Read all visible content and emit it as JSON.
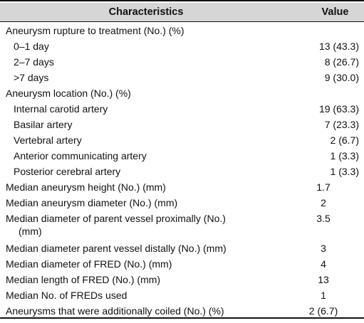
{
  "header": {
    "col1": "Characteristics",
    "col2": "Value"
  },
  "rows": [
    {
      "label": "Aneurysm rupture to treatment (No.) (%)",
      "value": ""
    },
    {
      "label": "0–1 day",
      "value": "13 (43.3)"
    },
    {
      "label": "2–7 days",
      "value": "8 (26.7)"
    },
    {
      "label": ">7 days",
      "value": "9 (30.0)"
    },
    {
      "label": "Aneurysm location (No.) (%)",
      "value": ""
    },
    {
      "label": "Internal carotid artery",
      "value": "19 (63.3)"
    },
    {
      "label": "Basilar artery",
      "value": "7 (23.3)"
    },
    {
      "label": "Vertebral artery",
      "value": "2 (6.7)"
    },
    {
      "label": "Anterior communicating artery",
      "value": "1 (3.3)"
    },
    {
      "label": "Posterior cerebral artery",
      "value": "1 (3.3)"
    },
    {
      "label": "Median aneurysm height (No.) (mm)",
      "value": "1.7"
    },
    {
      "label": "Median aneurysm diameter (No.) (mm)",
      "value": "2"
    },
    {
      "label": "Median diameter of parent vessel proximally (No.)",
      "label2": "(mm)",
      "value": "3.5"
    },
    {
      "label": "Median diameter parent vessel distally (No.) (mm)",
      "value": "3"
    },
    {
      "label": "Median diameter of FRED (No.) (mm)",
      "value": "4"
    },
    {
      "label": "Median length of FRED (No.) (mm)",
      "value": "13"
    },
    {
      "label": "Median No. of FREDs used",
      "value": "1"
    },
    {
      "label": "Aneurysms that were additionally coiled (No.) (%)",
      "value": "2 (6.7)"
    }
  ]
}
